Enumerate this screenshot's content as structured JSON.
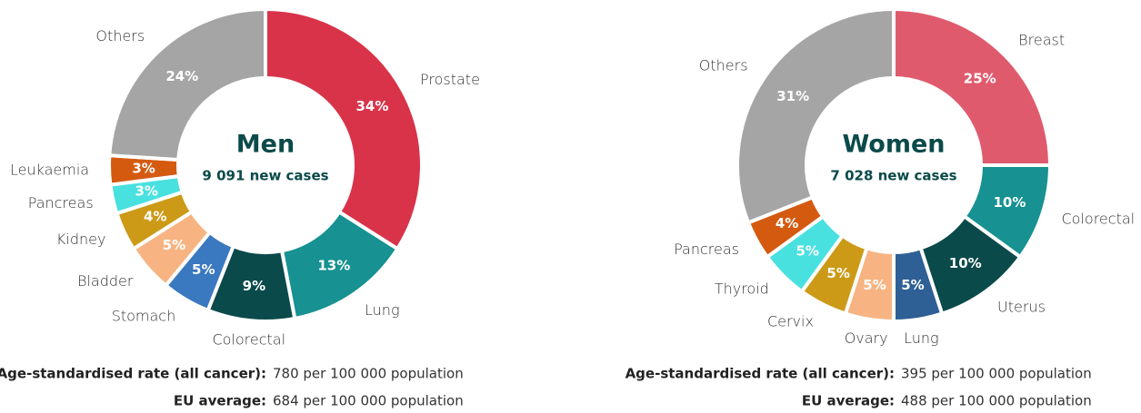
{
  "chart_data": [
    {
      "type": "pie",
      "title": "Men",
      "subtitle": "9 091 new cases",
      "categories": [
        "Prostate",
        "Lung",
        "Colorectal",
        "Stomach",
        "Bladder",
        "Kidney",
        "Pancreas",
        "Leukaemia",
        "Others"
      ],
      "values": [
        34,
        13,
        9,
        5,
        5,
        4,
        3,
        3,
        24
      ],
      "value_labels": [
        "34%",
        "13%",
        "9%",
        "5%",
        "5%",
        "4%",
        "3%",
        "3%",
        "24%"
      ],
      "colors": [
        "#d9334a",
        "#179191",
        "#0b4a4a",
        "#3a78c0",
        "#f7b482",
        "#cc9a17",
        "#49e0e0",
        "#d45a10",
        "#a5a5a5"
      ],
      "footer": [
        {
          "label": "Age-standardised rate (all cancer):",
          "text": "780 per 100 000 population"
        },
        {
          "label": "EU average:",
          "text": "684 per 100 000 population"
        }
      ]
    },
    {
      "type": "pie",
      "title": "Women",
      "subtitle": "7 028 new cases",
      "categories": [
        "Breast",
        "Colorectal",
        "Uterus",
        "Lung",
        "Ovary",
        "Cervix",
        "Thyroid",
        "Pancreas",
        "Others"
      ],
      "values": [
        25,
        10,
        10,
        5,
        5,
        5,
        5,
        4,
        31
      ],
      "value_labels": [
        "25%",
        "10%",
        "10%",
        "5%",
        "5%",
        "5%",
        "5%",
        "4%",
        "31%"
      ],
      "colors": [
        "#e05a6d",
        "#179191",
        "#0b4a4a",
        "#2e5f95",
        "#f7b482",
        "#cc9a17",
        "#49e0e0",
        "#d45a10",
        "#a5a5a5"
      ],
      "footer": [
        {
          "label": "Age-standardised rate (all cancer):",
          "text": "395 per 100 000 population"
        },
        {
          "label": "EU average:",
          "text": "488 per 100 000 population"
        }
      ]
    }
  ]
}
